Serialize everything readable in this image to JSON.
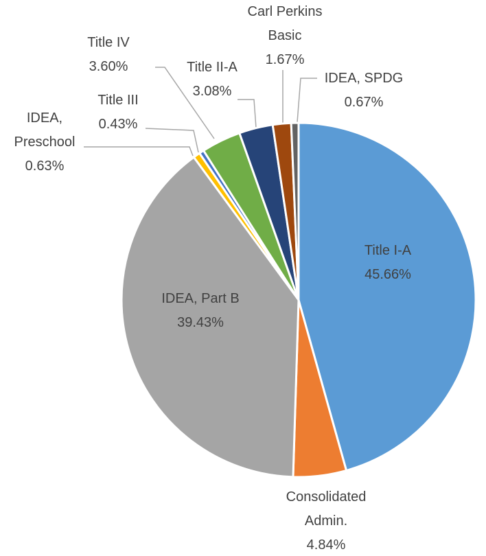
{
  "chart_data": {
    "type": "pie",
    "categories": [
      "Title I-A",
      "Consolidated Admin.",
      "IDEA, Part B",
      "IDEA, Preschool",
      "Title III",
      "Title IV",
      "Title II-A",
      "Carl Perkins Basic",
      "IDEA, SPDG"
    ],
    "values": [
      45.66,
      4.84,
      39.43,
      0.63,
      0.43,
      3.6,
      3.08,
      1.67,
      0.67
    ],
    "value_labels": [
      "45.66%",
      "4.84%",
      "39.43%",
      "0.63%",
      "0.43%",
      "3.60%",
      "3.08%",
      "1.67%",
      "0.67%"
    ],
    "colors": [
      "#5b9bd5",
      "#ed7d31",
      "#a5a5a5",
      "#ffc000",
      "#4472c4",
      "#70ad47",
      "#264478",
      "#9e480e",
      "#636363"
    ]
  }
}
